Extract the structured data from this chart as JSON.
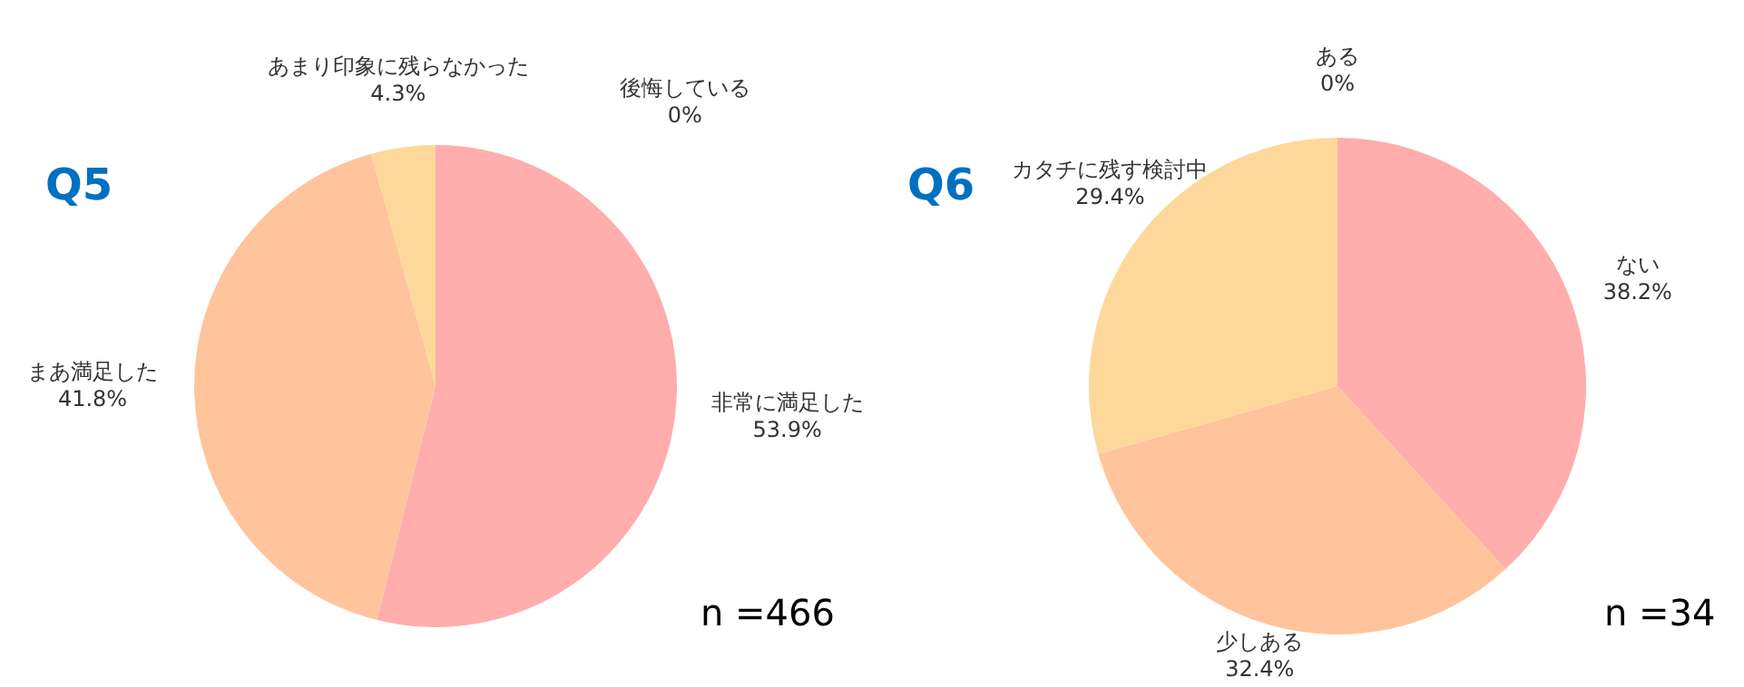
{
  "chart_data": [
    {
      "type": "pie",
      "title": "Q5",
      "categories": [
        "非常に満足した",
        "まあ満足した",
        "あまり印象に残らなかった",
        "後悔している"
      ],
      "values": [
        53.9,
        41.8,
        4.3,
        0
      ],
      "colors": [
        "#ffadad",
        "#ffc49c",
        "#fed89b",
        "#e0e0e0"
      ],
      "value_labels": [
        "53.9%",
        "41.8%",
        "4.3%",
        "0%"
      ],
      "annotations": [
        "n =466"
      ],
      "legend": false
    },
    {
      "type": "pie",
      "title": "Q6",
      "categories": [
        "ない",
        "少しある",
        "カタチに残す検討中",
        "ある"
      ],
      "values": [
        38.2,
        32.4,
        29.4,
        0
      ],
      "colors": [
        "#ffadad",
        "#ffc49c",
        "#fed89b",
        "#e0e0e0"
      ],
      "value_labels": [
        "38.2%",
        "32.4%",
        "29.4%",
        "0%"
      ],
      "annotations": [
        "n =34"
      ],
      "legend": false
    }
  ]
}
